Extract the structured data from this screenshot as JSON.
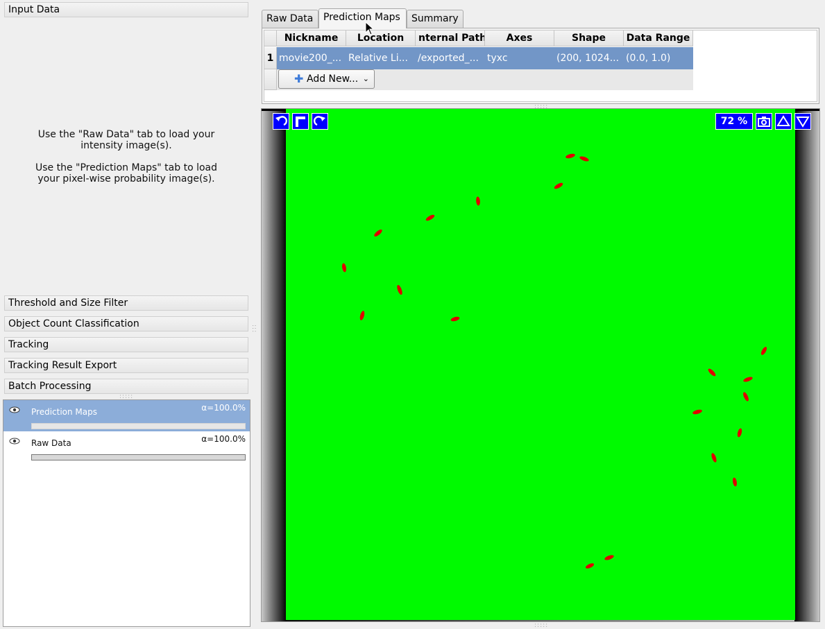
{
  "applets": {
    "input_data": {
      "title": "Input Data",
      "hint_raw": "Use the \"Raw Data\" tab to load your intensity image(s).",
      "hint_pred": "Use the \"Prediction Maps\" tab to load your pixel-wise probability image(s)."
    },
    "items": [
      {
        "label": "Threshold and Size Filter"
      },
      {
        "label": "Object Count Classification"
      },
      {
        "label": "Tracking"
      },
      {
        "label": "Tracking Result Export"
      },
      {
        "label": "Batch Processing"
      }
    ]
  },
  "layers": [
    {
      "name": "Prediction Maps",
      "alpha": "α=100.0%",
      "selected": true,
      "opacity": 1.0
    },
    {
      "name": "Raw Data",
      "alpha": "α=100.0%",
      "selected": false,
      "opacity": 1.0
    }
  ],
  "tabs": [
    {
      "label": "Raw Data",
      "active": false
    },
    {
      "label": "Prediction Maps",
      "active": true
    },
    {
      "label": "Summary",
      "active": false
    }
  ],
  "table": {
    "headers": [
      "Nickname",
      "Location",
      "nternal Path",
      "Axes",
      "Shape",
      "Data Range"
    ],
    "rows": [
      {
        "index": "1",
        "cells": [
          "movie200_...",
          "Relative Li...",
          "/exported_...",
          "tyxc",
          "(200, 1024...",
          "(0.0, 1.0)"
        ]
      }
    ],
    "add_button": "Add New..."
  },
  "viewer": {
    "zoom": "72 %",
    "background_color": "#00fa00",
    "object_color": "#e00000"
  }
}
